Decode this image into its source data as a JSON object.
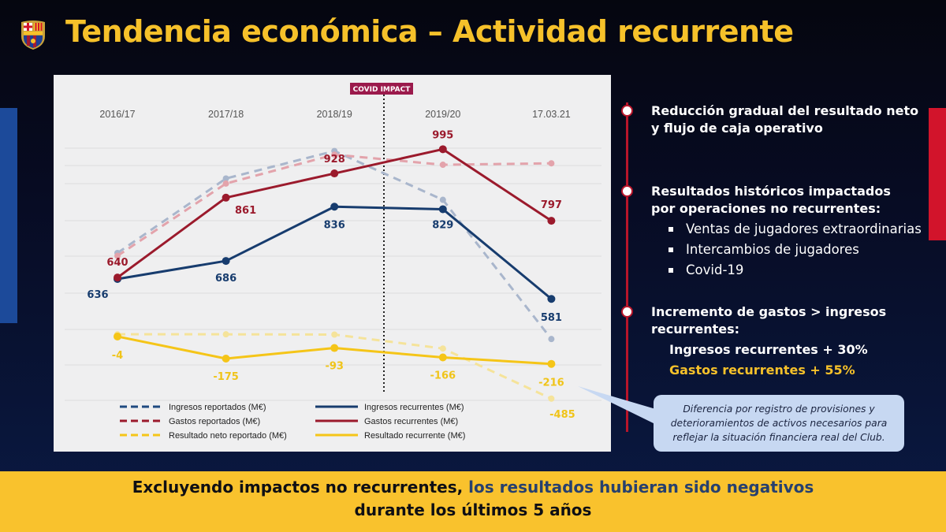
{
  "header": {
    "title": "Tendencia económica – Actividad recurrente",
    "logo": "FCB"
  },
  "chart_data": {
    "type": "line",
    "categories": [
      "2016/17",
      "2017/18",
      "2018/19",
      "2019/20",
      "17.03.21"
    ],
    "annotation": "COVID IMPACT",
    "legend_position": "bottom",
    "grid": true,
    "series": [
      {
        "name": "Ingresos reportados (M€)",
        "style": "dashed",
        "color": "#a9b6cc",
        "axis": "primary",
        "values": [
          708,
          914,
          990,
          855,
          470
        ]
      },
      {
        "name": "Gastos reportados (M€)",
        "style": "dashed",
        "color": "#e3a3ab",
        "axis": "primary",
        "values": [
          700,
          900,
          980,
          952,
          956
        ]
      },
      {
        "name": "Resultado neto reportado (M€)",
        "style": "dashed",
        "color": "#f5e39a",
        "axis": "secondary",
        "values": [
          13,
          13,
          11,
          -97,
          -485
        ],
        "labels": [
          "",
          "",
          "",
          "",
          "-485"
        ]
      },
      {
        "name": "Ingresos recurrentes (M€)",
        "style": "solid",
        "color": "#173c6e",
        "axis": "primary",
        "values": [
          636,
          686,
          836,
          829,
          581
        ],
        "labels": [
          "636",
          "686",
          "836",
          "829",
          "581"
        ]
      },
      {
        "name": "Gastos recurrentes (M€)",
        "style": "solid",
        "color": "#9b1a2c",
        "axis": "primary",
        "values": [
          640,
          861,
          928,
          995,
          797
        ],
        "labels": [
          "640",
          "861",
          "928",
          "995",
          "797"
        ]
      },
      {
        "name": "Resultado recurrente (M€)",
        "style": "solid",
        "color": "#f5c518",
        "axis": "secondary",
        "values": [
          -4,
          -175,
          -93,
          -166,
          -216
        ],
        "labels": [
          "-4",
          "-175",
          "-93",
          "-166",
          "-216"
        ]
      }
    ],
    "legend_colors": {
      "ingresos": "#1f4a80",
      "gastos": "#9b1a2c",
      "resultado": "#f5c518"
    }
  },
  "points": [
    {
      "title": "Reducción gradual del resultado neto y flujo de caja operativo"
    },
    {
      "title": "Resultados históricos impactados por operaciones no recurrentes:",
      "items": [
        "Ventas de jugadores extraordinarias",
        "Intercambios de jugadores",
        "Covid-19"
      ]
    },
    {
      "title": "Incremento de gastos > ingresos recurrentes:",
      "stats": [
        "Ingresos recurrentes + 30%",
        "Gastos recurrentes + 55%"
      ]
    }
  ],
  "callout": "Diferencia por registro de provisiones y deterioramientos de activos necesarios para reflejar la situación financiera real del Club.",
  "footer": {
    "part1": "Excluyendo impactos no recurrentes, ",
    "part2": "los resultados hubieran sido negativos",
    "line2": "durante los últimos 5 años"
  },
  "colors": {
    "title": "#f6c12a",
    "footer_bg": "#f9c22d",
    "accent_red": "#b8152a",
    "accent_blue": "#1c4a9a"
  }
}
